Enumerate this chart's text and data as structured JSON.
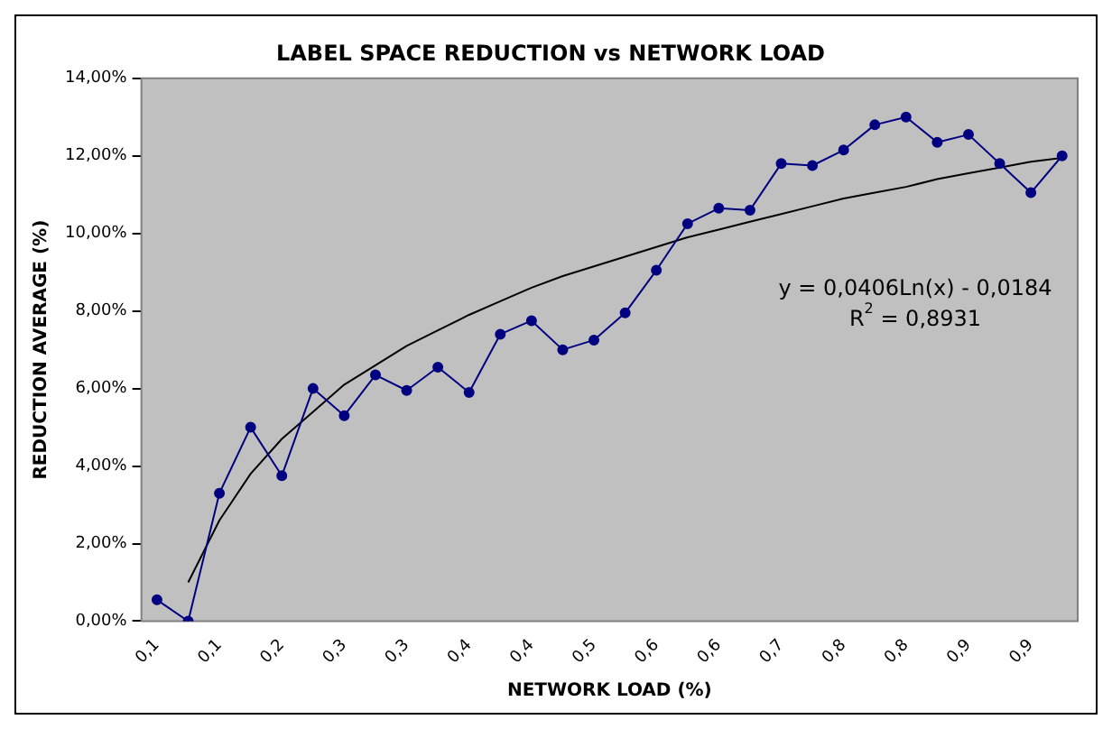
{
  "chart_data": {
    "type": "line",
    "title": "LABEL SPACE REDUCTION vs NETWORK LOAD",
    "xlabel": "NETWORK LOAD (%)",
    "ylabel": "REDUCTION AVERAGE (%)",
    "categories": [
      "0,1",
      null,
      "0,1",
      null,
      "0,2",
      null,
      "0,3",
      null,
      "0,3",
      null,
      "0,4",
      null,
      "0,4",
      null,
      "0,5",
      null,
      "0,6",
      null,
      "0,6",
      null,
      "0,7",
      null,
      "0,8",
      null,
      "0,8",
      null,
      "0,9",
      null,
      "0,9",
      null
    ],
    "series": [
      {
        "color": "#000080",
        "marker": "circle",
        "values": [
          0.55,
          0.0,
          3.3,
          5.0,
          3.75,
          6.0,
          5.3,
          6.35,
          5.95,
          6.55,
          5.9,
          7.4,
          7.75,
          7.0,
          7.25,
          7.95,
          9.05,
          10.25,
          10.65,
          10.6,
          11.8,
          11.75,
          12.15,
          12.8,
          13.0,
          12.35,
          12.55,
          11.8,
          11.05,
          12.0
        ]
      },
      {
        "color": "#000000",
        "marker": "none",
        "values": [
          null,
          1.0,
          2.6,
          3.8,
          4.7,
          5.4,
          6.1,
          6.6,
          7.1,
          7.5,
          7.9,
          8.25,
          8.6,
          8.9,
          9.15,
          9.4,
          9.65,
          9.9,
          10.1,
          10.3,
          10.5,
          10.7,
          10.9,
          11.05,
          11.2,
          11.4,
          11.55,
          11.7,
          11.85,
          11.95
        ]
      }
    ],
    "ylim": [
      0,
      14
    ],
    "yticks": [
      {
        "value": 0,
        "label": "0,00%"
      },
      {
        "value": 2,
        "label": "2,00%"
      },
      {
        "value": 4,
        "label": "4,00%"
      },
      {
        "value": 6,
        "label": "6,00%"
      },
      {
        "value": 8,
        "label": "8,00%"
      },
      {
        "value": 10,
        "label": "10,00%"
      },
      {
        "value": 12,
        "label": "12,00%"
      },
      {
        "value": 14,
        "label": "14,00%"
      }
    ],
    "grid": false,
    "legend": false,
    "annotations": [
      "y = 0,0406Ln(x) - 0,0184",
      "R$^{2}$ = 0,8931"
    ]
  }
}
